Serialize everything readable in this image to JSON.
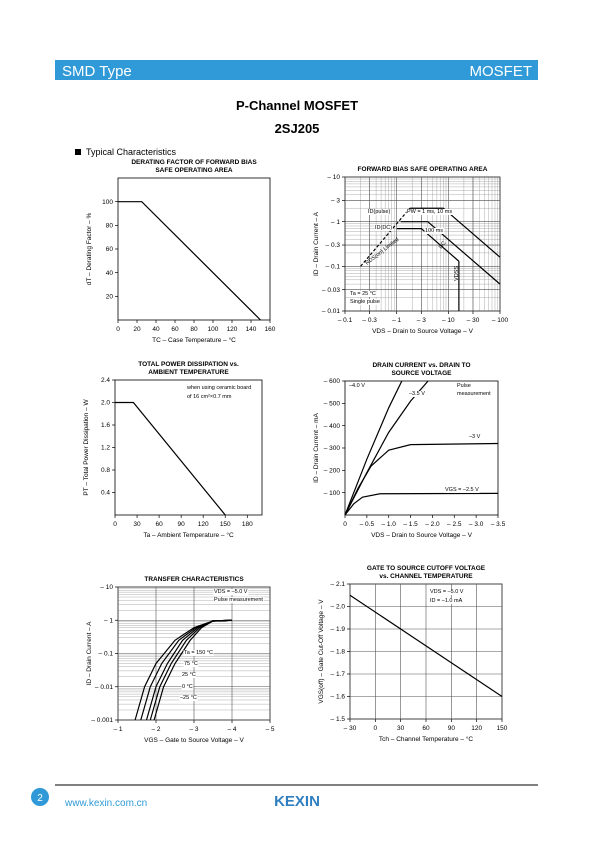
{
  "header": {
    "left": "SMD Type",
    "right": "MOSFET"
  },
  "title": "P-Channel MOSFET",
  "part": "2SJ205",
  "section": "Typical Characteristics",
  "chart_data": [
    {
      "type": "line",
      "title": [
        "DERATING FACTOR OF FORWARD BIAS",
        "SAFE OPERATING AREA"
      ],
      "xlabel": "TC – Case Temperature – °C",
      "ylabel": "dT – Derating Factor – %",
      "xlim": [
        0,
        160
      ],
      "ylim": [
        0,
        120
      ],
      "xticks": [
        0,
        20,
        40,
        60,
        80,
        100,
        120,
        140,
        160
      ],
      "yticks": [
        20,
        40,
        60,
        80,
        100
      ],
      "grid": false,
      "color": "#000000",
      "series": [
        {
          "x": [
            0,
            25,
            150
          ],
          "values": [
            100,
            100,
            0
          ]
        }
      ],
      "annotations": []
    },
    {
      "type": "line",
      "title": [
        "FORWARD BIAS SAFE OPERATING AREA"
      ],
      "xlabel": "VDS – Drain to Source Voltage – V",
      "ylabel": "ID – Drain Current – A",
      "xlim": [
        -0.1,
        -100
      ],
      "ylim": [
        -0.01,
        -10
      ],
      "xscale": "log",
      "yscale": "log",
      "grid": true,
      "color": "#000000",
      "xticks": [
        {
          "value": -0.1,
          "label": "– 0.1"
        },
        {
          "value": -0.3,
          "label": "– 0.3"
        },
        {
          "value": -1,
          "label": "– 1"
        },
        {
          "value": -3,
          "label": "– 3"
        },
        {
          "value": -10,
          "label": "– 10"
        },
        {
          "value": -30,
          "label": "– 30"
        },
        {
          "value": -100,
          "label": "– 100"
        }
      ],
      "yticks": [
        {
          "value": -0.01,
          "label": "– 0.01"
        },
        {
          "value": -0.03,
          "label": "– 0.03"
        },
        {
          "value": -0.1,
          "label": "– 0.1"
        },
        {
          "value": -0.3,
          "label": "– 0.3"
        },
        {
          "value": -1,
          "label": "– 1"
        },
        {
          "value": -3,
          "label": "– 3"
        },
        {
          "value": -10,
          "label": "– 10"
        }
      ],
      "series": [
        {
          "x": [
            -0.2,
            -1.8
          ],
          "values": [
            -0.1,
            -2
          ],
          "style": "dashed"
        },
        {
          "x": [
            -1.8,
            -8,
            -100
          ],
          "values": [
            -2,
            -2,
            -0.16
          ]
        },
        {
          "x": [
            -1.2,
            -4,
            -100
          ],
          "values": [
            -1,
            -1,
            -0.04
          ]
        },
        {
          "x": [
            -1,
            -3,
            -16
          ],
          "values": [
            -0.7,
            -0.7,
            -0.13
          ]
        },
        {
          "x": [
            -16,
            -16
          ],
          "values": [
            -0.01,
            -0.13
          ]
        }
      ],
      "annotations": [
        "ID(pulse)",
        "PW = 1 ms, 10 ms",
        "ID(DC)",
        "100 ms",
        "DC",
        "RDS(on) Limited",
        "Ta = 25 °C",
        "Single pulse",
        "VDSS"
      ]
    },
    {
      "type": "line",
      "title": [
        "TOTAL POWER DISSIPATION vs.",
        "AMBIENT TEMPERATURE"
      ],
      "xlabel": "Ta – Ambient Temperature – °C",
      "ylabel": "PT – Total Power Dissipation – W",
      "xlim": [
        0,
        200
      ],
      "ylim": [
        0,
        2.4
      ],
      "xticks": [
        0,
        30,
        60,
        90,
        120,
        150,
        180
      ],
      "yticks": [
        0.4,
        0.8,
        1.2,
        1.6,
        {
          "value": 2,
          "label": "2.0"
        },
        2.4
      ],
      "grid": false,
      "color": "#000000",
      "series": [
        {
          "x": [
            0,
            25,
            150
          ],
          "values": [
            2,
            2,
            0
          ]
        }
      ],
      "annotations": [
        "when using ceramic board",
        "of 16 cm²×0.7 mm"
      ]
    },
    {
      "type": "line",
      "title": [
        "DRAIN CURRENT vs. DRAIN TO",
        "SOURCE VOLTAGE"
      ],
      "xlabel": "VDS – Drain to Source Voltage – V",
      "ylabel": "ID – Drain Current – mA",
      "xlim": [
        0,
        -3.5
      ],
      "ylim": [
        0,
        -600
      ],
      "grid": false,
      "color": "#000000",
      "xticks": [
        0,
        {
          "value": -0.5,
          "label": "– 0.5"
        },
        {
          "value": -1,
          "label": "– 1.0"
        },
        {
          "value": -1.5,
          "label": "– 1.5"
        },
        {
          "value": -2,
          "label": "– 2.0"
        },
        {
          "value": -2.5,
          "label": "– 2.5"
        },
        {
          "value": -3,
          "label": "– 3.0"
        },
        {
          "value": -3.5,
          "label": "– 3.5"
        }
      ],
      "yticks": [
        {
          "value": -100,
          "label": "– 100"
        },
        {
          "value": -200,
          "label": "– 200"
        },
        {
          "value": -300,
          "label": "– 300"
        },
        {
          "value": -400,
          "label": "– 400"
        },
        {
          "value": -500,
          "label": "– 500"
        },
        {
          "value": -600,
          "label": "– 600"
        }
      ],
      "series": [
        {
          "x": [
            0,
            -0.5,
            -1,
            -1.3
          ],
          "values": [
            0,
            -250,
            -480,
            -600
          ]
        },
        {
          "x": [
            0,
            -0.5,
            -1,
            -1.5,
            -1.9
          ],
          "values": [
            0,
            -190,
            -370,
            -510,
            -600
          ]
        },
        {
          "x": [
            0,
            -0.3,
            -0.6,
            -1,
            -1.5,
            -3.5
          ],
          "values": [
            0,
            -120,
            -220,
            -290,
            -315,
            -320
          ]
        },
        {
          "x": [
            0,
            -0.2,
            -0.4,
            -0.8,
            -3.5
          ],
          "values": [
            0,
            -50,
            -80,
            -95,
            -97
          ]
        }
      ],
      "annotations": [
        "–4.0 V",
        "–3.5 V",
        "–3 V",
        "VGS = –2.5 V",
        "Pulse",
        "measurement"
      ]
    },
    {
      "type": "line",
      "title": [
        "TRANSFER CHARACTERISTICS"
      ],
      "xlabel": "VGS – Gate to Source Voltage – V",
      "ylabel": "ID – Drain Current – A",
      "xlim": [
        -1,
        -5
      ],
      "ylim": [
        -0.001,
        -10
      ],
      "yscale": "log",
      "grid": true,
      "color": "#000000",
      "xticks": [
        {
          "value": -1,
          "label": "– 1"
        },
        {
          "value": -2,
          "label": "– 2"
        },
        {
          "value": -3,
          "label": "– 3"
        },
        {
          "value": -4,
          "label": "– 4"
        },
        {
          "value": -5,
          "label": "– 5"
        }
      ],
      "yticks": [
        {
          "value": -0.001,
          "label": "– 0.001"
        },
        {
          "value": -0.01,
          "label": "– 0.01"
        },
        {
          "value": -0.1,
          "label": "– 0.1"
        },
        {
          "value": -1,
          "label": "– 1"
        },
        {
          "value": -10,
          "label": "– 10"
        }
      ],
      "series": [
        {
          "x": [
            -1.45,
            -1.7,
            -2,
            -2.5,
            -3,
            -3.5,
            -4
          ],
          "values": [
            -0.001,
            -0.01,
            -0.05,
            -0.25,
            -0.6,
            -0.95,
            -1
          ]
        },
        {
          "x": [
            -1.6,
            -1.85,
            -2.15,
            -2.6,
            -3.05,
            -3.5,
            -4
          ],
          "values": [
            -0.001,
            -0.01,
            -0.05,
            -0.25,
            -0.6,
            -0.95,
            -1
          ]
        },
        {
          "x": [
            -1.75,
            -2,
            -2.3,
            -2.7,
            -3.1,
            -3.5,
            -4
          ],
          "values": [
            -0.001,
            -0.01,
            -0.05,
            -0.25,
            -0.6,
            -0.95,
            -1
          ]
        },
        {
          "x": [
            -1.85,
            -2.1,
            -2.4,
            -2.8,
            -3.15,
            -3.5,
            -4
          ],
          "values": [
            -0.001,
            -0.01,
            -0.05,
            -0.25,
            -0.6,
            -0.95,
            -1
          ]
        },
        {
          "x": [
            -1.95,
            -2.2,
            -2.5,
            -2.9,
            -3.2,
            -3.5,
            -4
          ],
          "values": [
            -0.001,
            -0.01,
            -0.05,
            -0.25,
            -0.6,
            -0.95,
            -1
          ]
        }
      ],
      "annotations": [
        "VDS = –5.0 V",
        "Pulse measurement",
        "Ta = 150 °C",
        "75 °C",
        "25 °C",
        "0 °C",
        "–25 °C"
      ]
    },
    {
      "type": "line",
      "title": [
        "GATE TO SOURCE CUTOFF VOLTAGE",
        "vs. CHANNEL TEMPERATURE"
      ],
      "xlabel": "Tch – Channel Temperature – °C",
      "ylabel": "VGS(off) – Gate Cut-Off Voltage – V",
      "xlim": [
        -30,
        150
      ],
      "ylim": [
        -1.5,
        -2.1
      ],
      "grid": true,
      "color": "#000000",
      "xticks": [
        {
          "value": -30,
          "label": "– 30"
        },
        0,
        30,
        60,
        90,
        120,
        150
      ],
      "yticks": [
        {
          "value": -1.5,
          "label": "– 1.5"
        },
        {
          "value": -1.6,
          "label": "– 1.6"
        },
        {
          "value": -1.7,
          "label": "– 1.7"
        },
        {
          "value": -1.8,
          "label": "– 1.8"
        },
        {
          "value": -1.9,
          "label": "– 1.9"
        },
        {
          "value": -2,
          "label": "– 2.0"
        },
        {
          "value": -2.1,
          "label": "– 2.1"
        }
      ],
      "series": [
        {
          "x": [
            -30,
            150
          ],
          "values": [
            -2.05,
            -1.6
          ]
        }
      ],
      "annotations": [
        "VDS = –5.0 V",
        "ID = –1.0 mA"
      ]
    }
  ],
  "footer": {
    "page": "2",
    "url": "www.kexin.com.cn",
    "logo": "KEXIN"
  }
}
